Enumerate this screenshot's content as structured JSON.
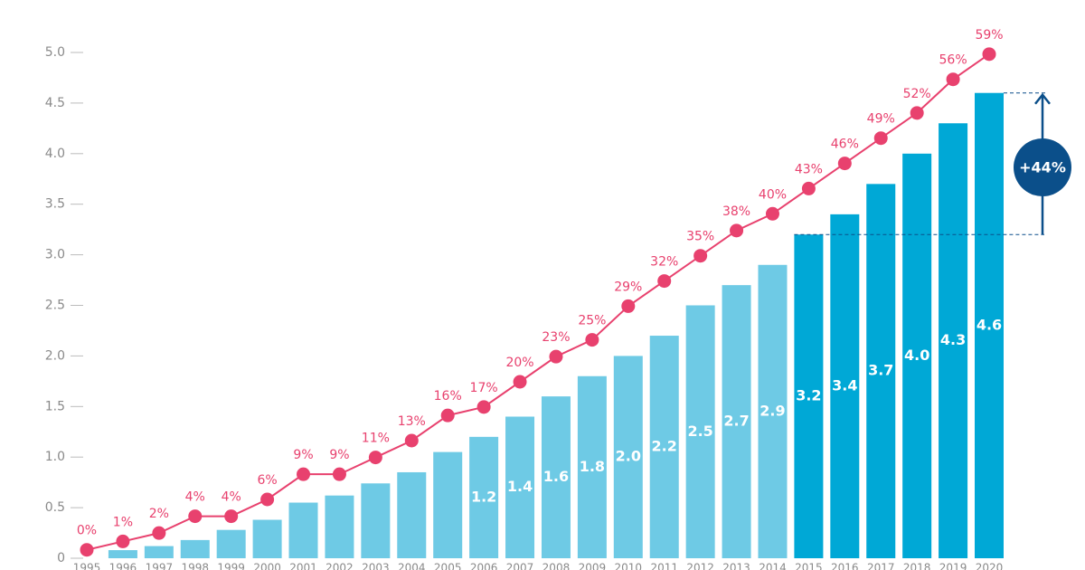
{
  "chart_data": {
    "type": "bar",
    "categories": [
      "1995",
      "1996",
      "1997",
      "1998",
      "1999",
      "2000",
      "2001",
      "2002",
      "2003",
      "2004",
      "2005",
      "2006",
      "2007",
      "2008",
      "2009",
      "2010",
      "2011",
      "2012",
      "2013",
      "2014",
      "2015",
      "2016",
      "2017",
      "2018",
      "2019",
      "2020"
    ],
    "series": [
      {
        "type": "bar",
        "values": [
          0,
          0.08,
          0.12,
          0.18,
          0.28,
          0.38,
          0.55,
          0.62,
          0.74,
          0.85,
          1.05,
          1.2,
          1.4,
          1.6,
          1.8,
          2.0,
          2.2,
          2.5,
          2.7,
          2.9,
          3.2,
          3.4,
          3.7,
          4.0,
          4.3,
          4.6
        ],
        "value_labels": [
          null,
          null,
          null,
          null,
          null,
          null,
          null,
          null,
          null,
          null,
          null,
          "1.2",
          "1.4",
          "1.6",
          "1.8",
          "2.0",
          "2.2",
          "2.5",
          "2.7",
          "2.9",
          "3.2",
          "3.4",
          "3.7",
          "4.0",
          "4.3",
          "4.6"
        ],
        "colors": [
          "#6ecae5",
          "#6ecae5",
          "#6ecae5",
          "#6ecae5",
          "#6ecae5",
          "#6ecae5",
          "#6ecae5",
          "#6ecae5",
          "#6ecae5",
          "#6ecae5",
          "#6ecae5",
          "#6ecae5",
          "#6ecae5",
          "#6ecae5",
          "#6ecae5",
          "#6ecae5",
          "#6ecae5",
          "#6ecae5",
          "#6ecae5",
          "#6ecae5",
          "#00a8d6",
          "#00a8d6",
          "#00a8d6",
          "#00a8d6",
          "#00a8d6",
          "#00a8d6"
        ]
      },
      {
        "type": "line",
        "axis": "y2",
        "color": "#e8416e",
        "values": [
          0,
          1,
          2,
          4,
          4,
          6,
          9,
          9,
          11,
          13,
          16,
          17,
          20,
          23,
          25,
          29,
          32,
          35,
          38,
          40,
          43,
          46,
          49,
          52,
          56,
          59
        ],
        "value_labels": [
          "0%",
          "1%",
          "2%",
          "4%",
          "4%",
          "6%",
          "9%",
          "9%",
          "11%",
          "13%",
          "16%",
          "17%",
          "20%",
          "23%",
          "25%",
          "29%",
          "32%",
          "35%",
          "38%",
          "40%",
          "43%",
          "46%",
          "49%",
          "52%",
          "56%",
          "59%"
        ]
      }
    ],
    "annotation": {
      "text": "+44%",
      "color": "#0b4f8a"
    },
    "ylim": [
      0,
      5
    ],
    "yticks": [
      0,
      0.5,
      {
        "value": 1,
        "label": "1.0"
      },
      1.5,
      {
        "value": 2,
        "label": "2.0"
      },
      2.5,
      {
        "value": 3,
        "label": "3.0"
      },
      3.5,
      {
        "value": 4,
        "label": "4.0"
      },
      4.5,
      {
        "value": 5,
        "label": "5.0"
      }
    ],
    "y2lim": [
      -1,
      59.2
    ]
  }
}
